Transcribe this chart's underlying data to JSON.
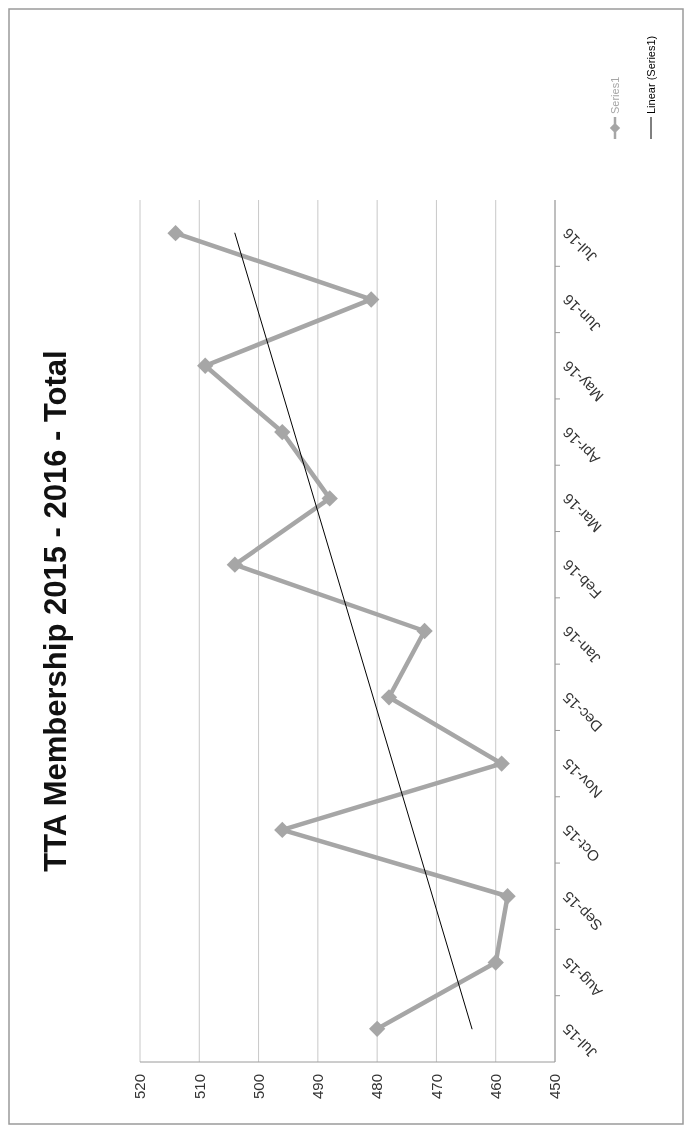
{
  "chart_data": {
    "type": "line",
    "title": "TTA Membership 2015 - 2016 - Total",
    "orientation": "horizontal",
    "categories": [
      "Jul-16",
      "Jun-16",
      "May-16",
      "Apr-16",
      "Mar-16",
      "Feb-16",
      "Jan-16",
      "Dec-15",
      "Nov-15",
      "Oct-15",
      "Sep-15",
      "Aug-15",
      "Jul-15"
    ],
    "series": [
      {
        "name": "Series1",
        "color": "#a6a6a6",
        "values": [
          514,
          481,
          509,
          496,
          488,
          504,
          472,
          478,
          459,
          496,
          458,
          460,
          480
        ]
      },
      {
        "name": "Linear (Series1)",
        "type": "line",
        "color": "#000000",
        "marker": "none",
        "x": [
          "Jul-16",
          "Jul-15"
        ],
        "values": [
          504,
          464
        ]
      }
    ],
    "xlim": [
      520,
      450
    ],
    "xticks": [
      520,
      510,
      500,
      490,
      480,
      470,
      460,
      450
    ],
    "grid": "x",
    "legend": "right",
    "marker": "diamond"
  }
}
